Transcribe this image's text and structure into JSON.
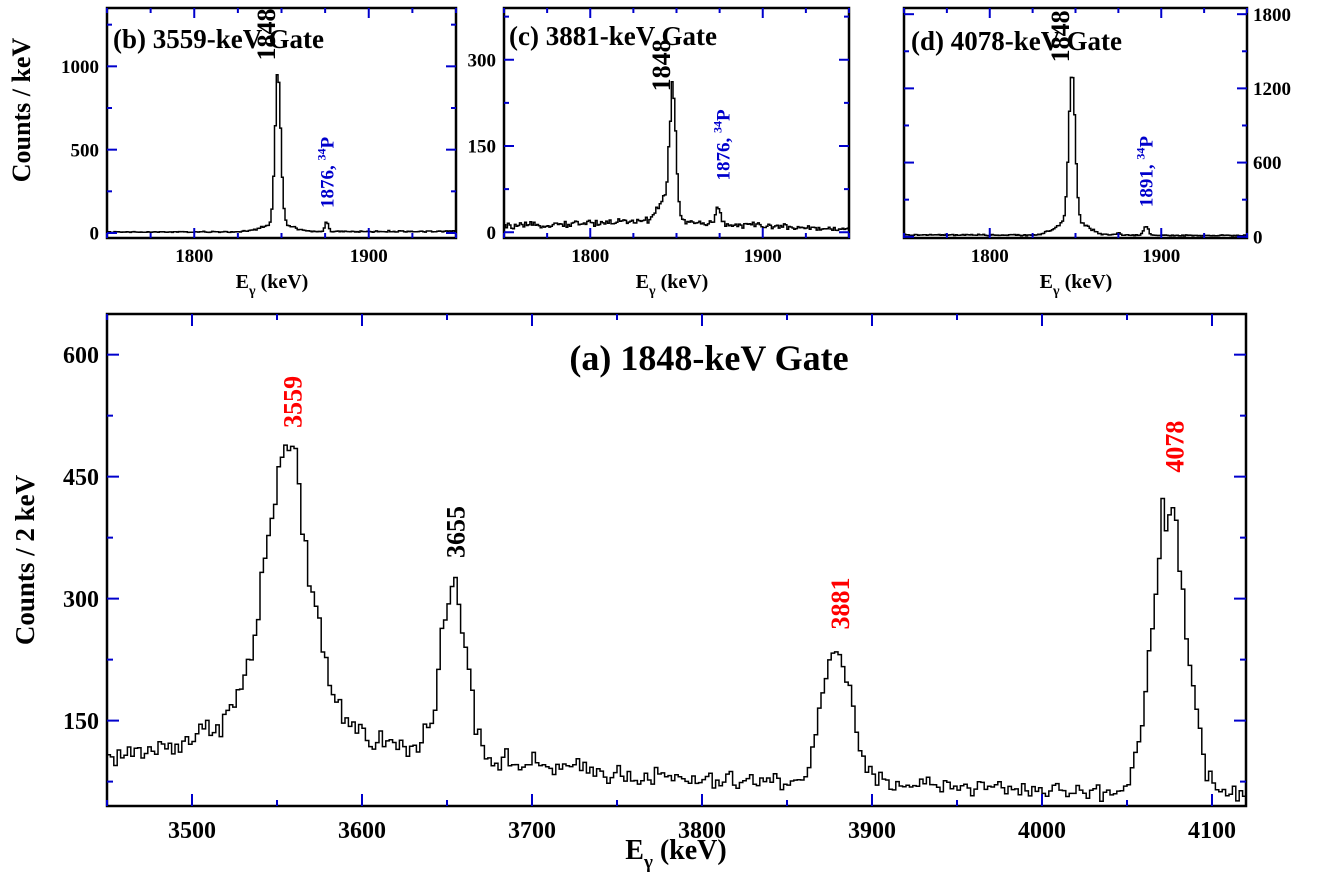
{
  "chart_data": [
    {
      "id": "a",
      "type": "histogram",
      "title": "(a) 1848-keV Gate",
      "xlabel": "E",
      "xlabel_sub": "γ",
      "xlabel_unit": "(keV)",
      "ylabel": "Counts / 2 keV",
      "xlim": [
        3450,
        4120
      ],
      "ylim": [
        45,
        650
      ],
      "xticks": [
        3500,
        3600,
        3700,
        3800,
        3900,
        4000,
        4100
      ],
      "yticks": [
        150,
        300,
        450,
        600
      ],
      "x_minor_step": 50,
      "y_minor_step": 75,
      "right_tick_labels": false,
      "baseline": {
        "x": [
          3450,
          3500,
          3530,
          3600,
          3650,
          3700,
          3800,
          3900,
          3950,
          4000,
          4050,
          4120
        ],
        "y": [
          105,
          115,
          125,
          105,
          105,
          95,
          75,
          75,
          70,
          65,
          60,
          60
        ]
      },
      "peaks": [
        {
          "center": 3556,
          "amplitude": 300,
          "sigma": 12
        },
        {
          "center": 3560,
          "amplitude": 60,
          "sigma": 35
        },
        {
          "center": 3654,
          "amplitude": 205,
          "sigma": 8
        },
        {
          "center": 3879,
          "amplitude": 170,
          "sigma": 8
        },
        {
          "center": 4075,
          "amplitude": 350,
          "sigma": 10
        }
      ],
      "annotations": [
        {
          "text": "3559",
          "x": 3559,
          "y": 510,
          "color": "#ff0000"
        },
        {
          "text": "3655",
          "x": 3655,
          "y": 350,
          "color": "#000000"
        },
        {
          "text": "3881",
          "x": 3881,
          "y": 262,
          "color": "#ff0000"
        },
        {
          "text": "4078",
          "x": 4078,
          "y": 455,
          "color": "#ff0000"
        }
      ]
    },
    {
      "id": "b",
      "type": "histogram",
      "title": "(b) 3559-keV Gate",
      "xlabel": "E",
      "xlabel_sub": "γ",
      "xlabel_unit": "(keV)",
      "ylabel": "Counts / keV",
      "xlim": [
        1750,
        1950
      ],
      "ylim": [
        -30,
        1350
      ],
      "xticks": [
        1800,
        1900
      ],
      "yticks": [
        0,
        500,
        1000
      ],
      "x_minor_step": 25,
      "y_minor_step": 250,
      "right_tick_labels": false,
      "baseline": {
        "x": [
          1750,
          1950
        ],
        "y": [
          5,
          10
        ]
      },
      "peaks": [
        {
          "center": 1848,
          "amplitude": 930,
          "sigma": 1.6
        },
        {
          "center": 1848,
          "amplitude": 50,
          "sigma": 8
        },
        {
          "center": 1876,
          "amplitude": 60,
          "sigma": 0.9
        }
      ],
      "annotations": [
        {
          "text": "1848",
          "x": 1841,
          "y": 1035,
          "color": "#000000"
        },
        {
          "text": "1876, ",
          "sup": "34",
          "tail": "P",
          "x": 1876,
          "y": 150,
          "color": "#0000cc"
        }
      ]
    },
    {
      "id": "c",
      "type": "histogram",
      "title": "(c) 3881-keV Gate",
      "xlabel": "E",
      "xlabel_sub": "γ",
      "xlabel_unit": "(keV)",
      "ylabel": "",
      "xlim": [
        1750,
        1950
      ],
      "ylim": [
        -10,
        390
      ],
      "xticks": [
        1800,
        1900
      ],
      "yticks": [
        0,
        150,
        300
      ],
      "x_minor_step": 25,
      "y_minor_step": 75,
      "right_tick_labels": false,
      "baseline": {
        "x": [
          1750,
          1830,
          1870,
          1950
        ],
        "y": [
          10,
          20,
          15,
          5
        ]
      },
      "peaks": [
        {
          "center": 1848,
          "amplitude": 220,
          "sigma": 1.8
        },
        {
          "center": 1843,
          "amplitude": 40,
          "sigma": 4
        },
        {
          "center": 1874,
          "amplitude": 30,
          "sigma": 1.2
        }
      ],
      "annotations": [
        {
          "text": "1848",
          "x": 1841,
          "y": 245,
          "color": "#000000"
        },
        {
          "text": "1876, ",
          "sup": "34",
          "tail": "P",
          "x": 1877,
          "y": 90,
          "color": "#0000cc"
        }
      ]
    },
    {
      "id": "d",
      "type": "histogram",
      "title": "(d) 4078-keV Gate",
      "xlabel": "E",
      "xlabel_sub": "γ",
      "xlabel_unit": "(keV)",
      "ylabel": "",
      "xlim": [
        1750,
        1950
      ],
      "ylim": [
        -10,
        1850
      ],
      "xticks": [
        1800,
        1900
      ],
      "yticks": [
        0,
        600,
        1200,
        1800
      ],
      "x_minor_step": 25,
      "y_minor_step": 300,
      "right_tick_labels": true,
      "baseline": {
        "x": [
          1750,
          1950
        ],
        "y": [
          15,
          10
        ]
      },
      "peaks": [
        {
          "center": 1848,
          "amplitude": 1200,
          "sigma": 1.8
        },
        {
          "center": 1848,
          "amplitude": 130,
          "sigma": 8
        },
        {
          "center": 1891,
          "amplitude": 80,
          "sigma": 1.4
        },
        {
          "center": 1875,
          "amplitude": 20,
          "sigma": 1.5
        }
      ],
      "annotations": [
        {
          "text": "1848",
          "x": 1841,
          "y": 1410,
          "color": "#000000"
        },
        {
          "text": "1891, ",
          "sup": "34",
          "tail": "P",
          "x": 1891,
          "y": 240,
          "color": "#0000cc"
        }
      ]
    }
  ]
}
